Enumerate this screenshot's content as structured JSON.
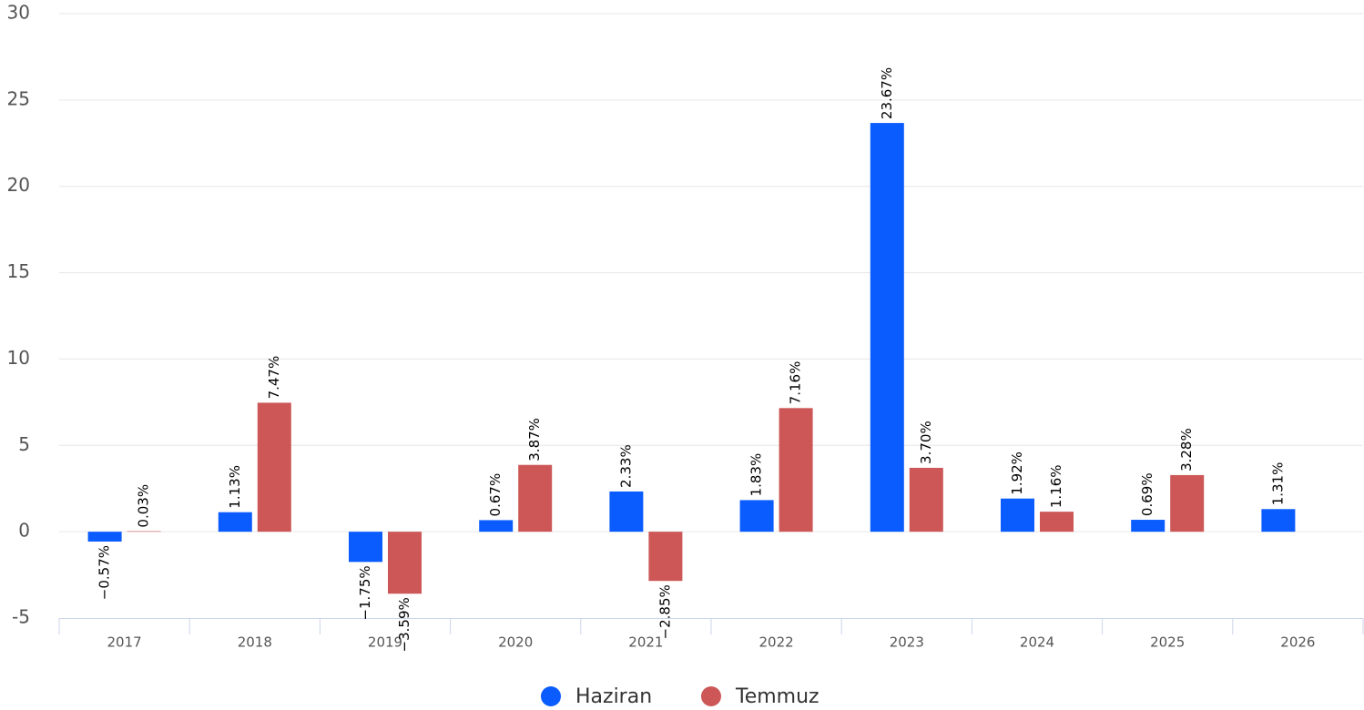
{
  "chart_data": {
    "type": "bar",
    "categories": [
      "2017",
      "2018",
      "2019",
      "2020",
      "2021",
      "2022",
      "2023",
      "2024",
      "2025",
      "2026"
    ],
    "series": [
      {
        "name": "Haziran",
        "color": "#0a5cff",
        "values": [
          -0.57,
          1.13,
          -1.75,
          0.67,
          2.33,
          1.83,
          23.67,
          1.92,
          0.69,
          1.31
        ],
        "value_labels": [
          "−0.57%",
          "1.13%",
          "−1.75%",
          "0.67%",
          "2.33%",
          "1.83%",
          "23.67%",
          "1.92%",
          "0.69%",
          "1.31%"
        ]
      },
      {
        "name": "Temmuz",
        "color": "#cd5757",
        "values": [
          0.03,
          7.47,
          -3.59,
          3.87,
          -2.85,
          7.16,
          3.7,
          1.16,
          3.28,
          null
        ],
        "value_labels": [
          "0.03%",
          "7.47%",
          "−3.59%",
          "3.87%",
          "−2.85%",
          "7.16%",
          "3.70%",
          "1.16%",
          "3.28%",
          null
        ]
      }
    ],
    "ylim": [
      -5,
      30
    ],
    "yticks": [
      -5,
      0,
      5,
      10,
      15,
      20,
      25,
      30
    ],
    "grid": true,
    "legend": "bottom"
  }
}
